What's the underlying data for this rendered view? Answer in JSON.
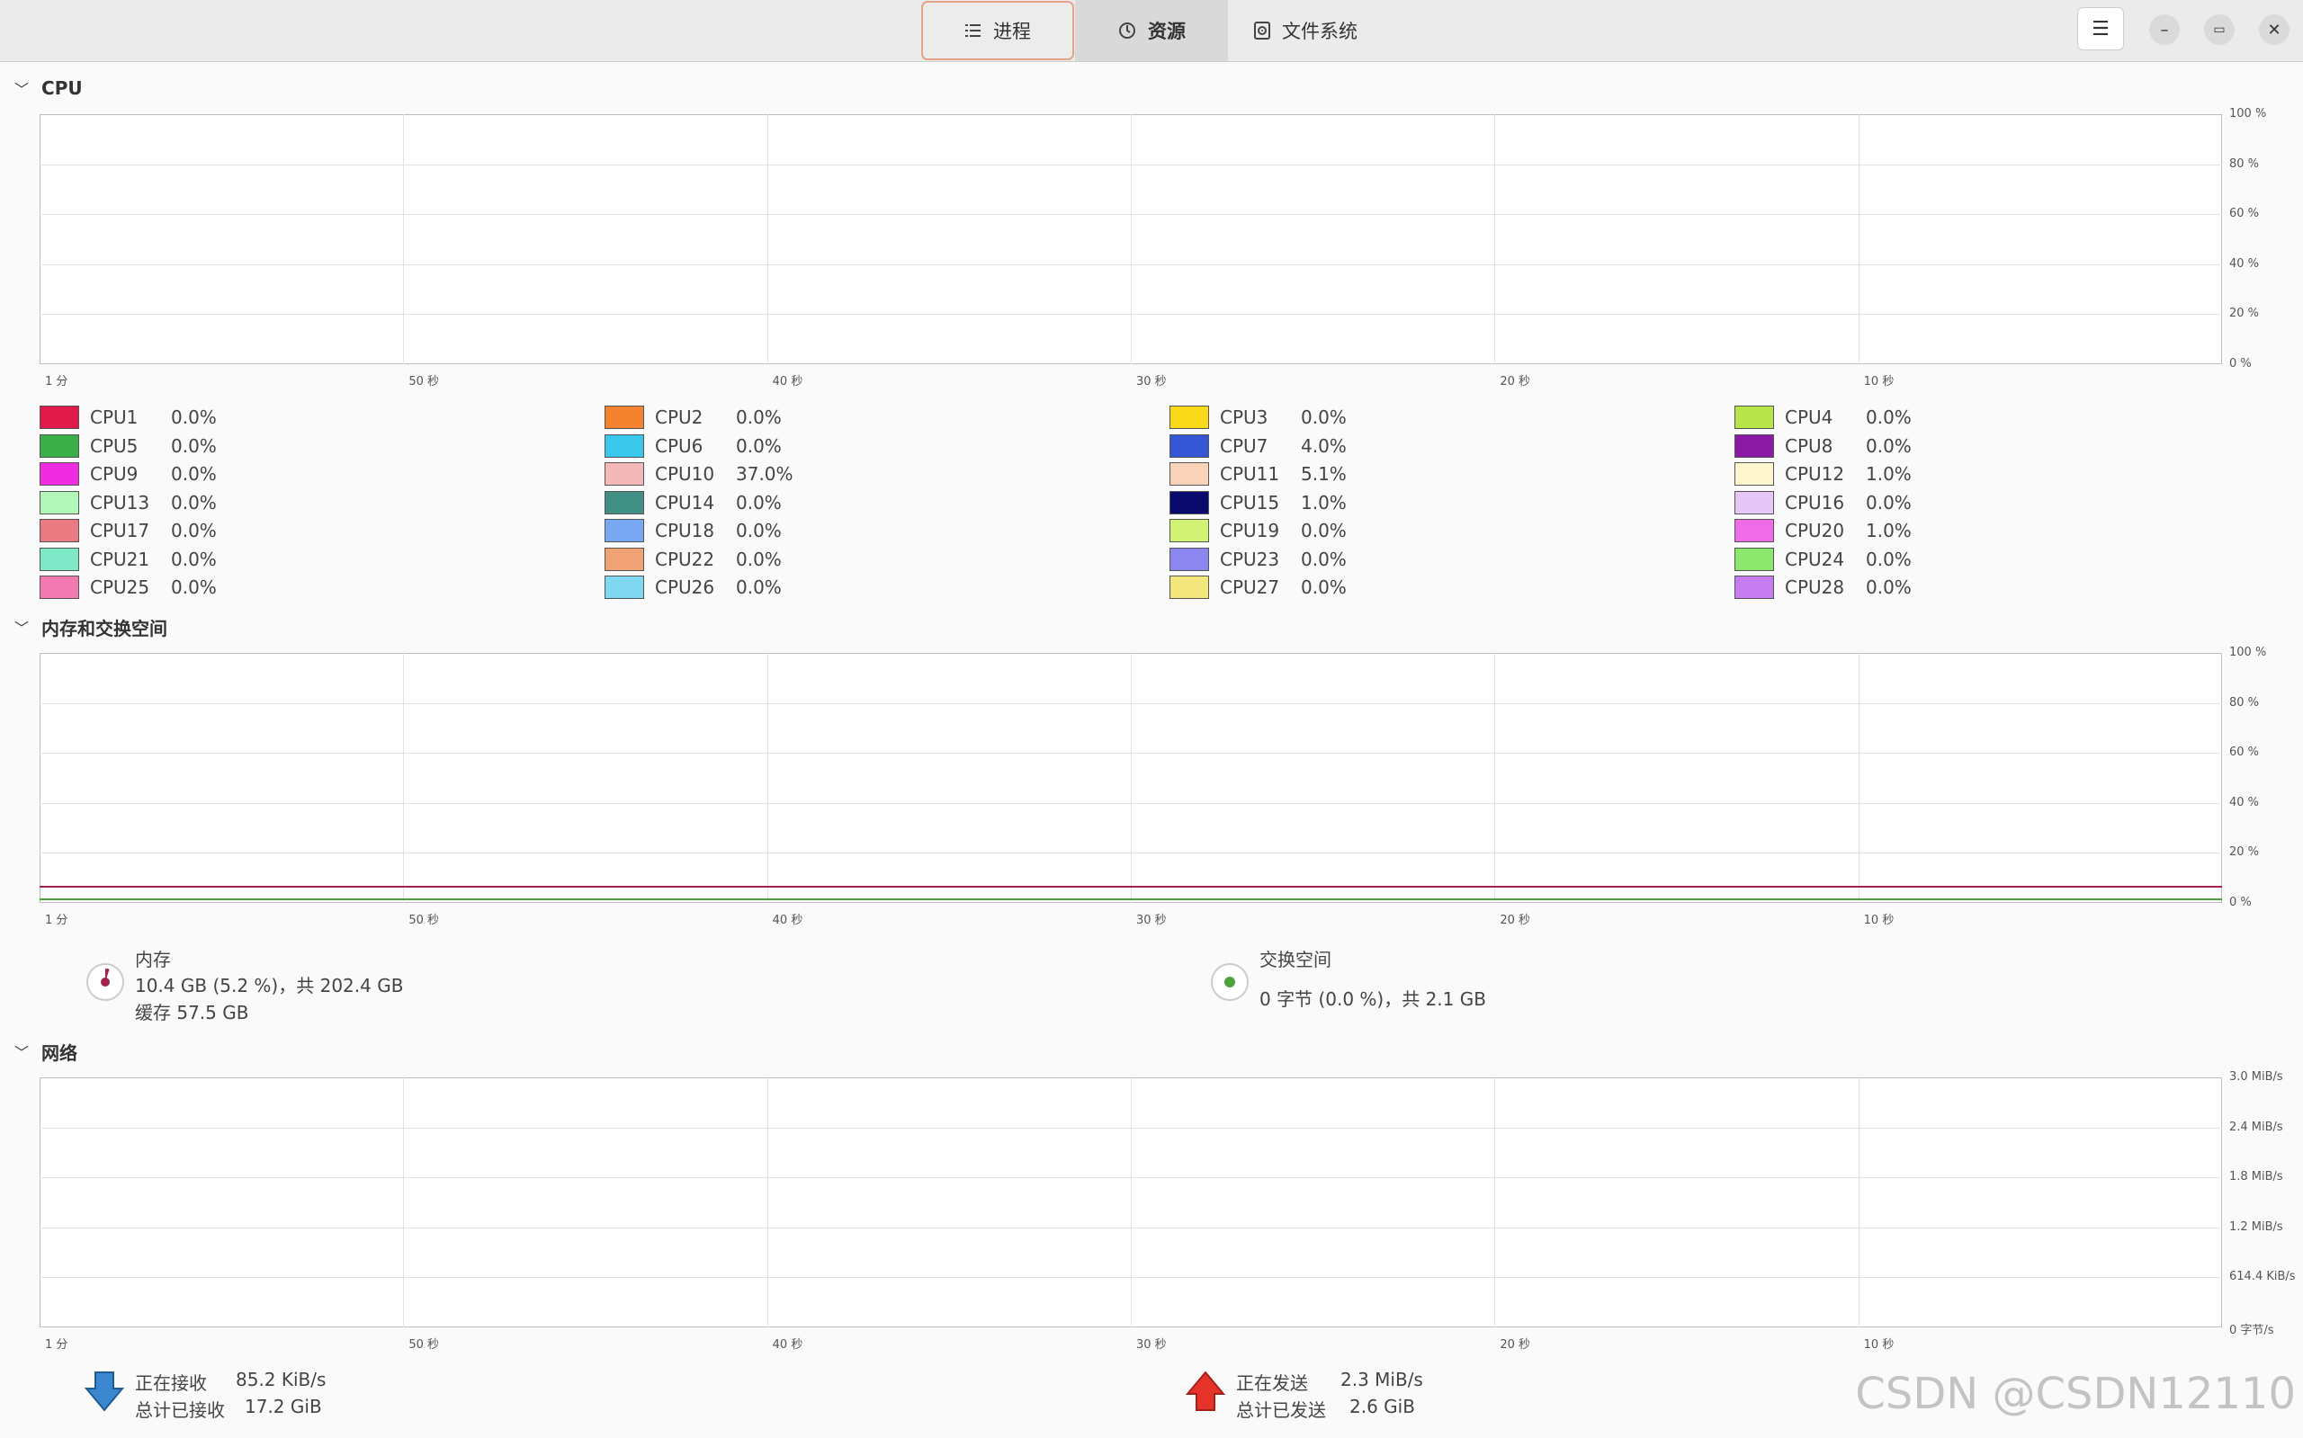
{
  "tabs": [
    {
      "label": "进程",
      "icon": "list-icon"
    },
    {
      "label": "资源",
      "icon": "gauge-icon"
    },
    {
      "label": "文件系统",
      "icon": "disk-icon"
    }
  ],
  "window_buttons": {
    "menu": "☰",
    "minimize": "–",
    "maximize": "▭",
    "close": "✕"
  },
  "sections": {
    "cpu": "CPU",
    "memory": "内存和交换空间",
    "network": "网络"
  },
  "x_ticks": [
    "1 分",
    "50 秒",
    "40 秒",
    "30 秒",
    "20 秒",
    "10 秒"
  ],
  "pct_ticks": [
    "100 %",
    "80 %",
    "60 %",
    "40 %",
    "20 %",
    "0 %"
  ],
  "net_ticks": [
    "3.0 MiB/s",
    "2.4 MiB/s",
    "1.8 MiB/s",
    "1.2 MiB/s",
    "614.4 KiB/s",
    "0 字节/s"
  ],
  "cpus": [
    {
      "name": "CPU1",
      "value": "0.0%",
      "color": "#e01b4c"
    },
    {
      "name": "CPU2",
      "value": "0.0%",
      "color": "#f5822e"
    },
    {
      "name": "CPU3",
      "value": "0.0%",
      "color": "#f8d91a"
    },
    {
      "name": "CPU4",
      "value": "0.0%",
      "color": "#b8e64a"
    },
    {
      "name": "CPU5",
      "value": "0.0%",
      "color": "#3aae49"
    },
    {
      "name": "CPU6",
      "value": "0.0%",
      "color": "#39c8ec"
    },
    {
      "name": "CPU7",
      "value": "4.0%",
      "color": "#3557d6"
    },
    {
      "name": "CPU8",
      "value": "0.0%",
      "color": "#8a1aa3"
    },
    {
      "name": "CPU9",
      "value": "0.0%",
      "color": "#ef2ce0"
    },
    {
      "name": "CPU10",
      "value": "37.0%",
      "color": "#f4b8b9"
    },
    {
      "name": "CPU11",
      "value": "5.1%",
      "color": "#f9d2ba"
    },
    {
      "name": "CPU12",
      "value": "1.0%",
      "color": "#fdf6cf"
    },
    {
      "name": "CPU13",
      "value": "0.0%",
      "color": "#b0f7b8"
    },
    {
      "name": "CPU14",
      "value": "0.0%",
      "color": "#3f8f84"
    },
    {
      "name": "CPU15",
      "value": "1.0%",
      "color": "#0a0a6e"
    },
    {
      "name": "CPU16",
      "value": "0.0%",
      "color": "#e6c6f7"
    },
    {
      "name": "CPU17",
      "value": "0.0%",
      "color": "#ec7a82"
    },
    {
      "name": "CPU18",
      "value": "0.0%",
      "color": "#79a8f2"
    },
    {
      "name": "CPU19",
      "value": "0.0%",
      "color": "#d2f275"
    },
    {
      "name": "CPU20",
      "value": "1.0%",
      "color": "#ef6ce6"
    },
    {
      "name": "CPU21",
      "value": "0.0%",
      "color": "#7ee8c7"
    },
    {
      "name": "CPU22",
      "value": "0.0%",
      "color": "#f0a274"
    },
    {
      "name": "CPU23",
      "value": "0.0%",
      "color": "#8c86f1"
    },
    {
      "name": "CPU24",
      "value": "0.0%",
      "color": "#8ce76d"
    },
    {
      "name": "CPU25",
      "value": "0.0%",
      "color": "#f27ab0"
    },
    {
      "name": "CPU26",
      "value": "0.0%",
      "color": "#7fd7f0"
    },
    {
      "name": "CPU27",
      "value": "0.0%",
      "color": "#f1e57c"
    },
    {
      "name": "CPU28",
      "value": "0.0%",
      "color": "#c57cf0"
    }
  ],
  "memory": {
    "label": "内存",
    "detail": "10.4 GB (5.2 %)，共 202.4 GB",
    "cache": "缓存 57.5 GB",
    "color": "#a3224b"
  },
  "swap": {
    "label": "交换空间",
    "detail": "0 字节 (0.0 %)，共 2.1 GB",
    "color": "#4ba33a"
  },
  "network": {
    "recv_label": "正在接收",
    "recv_value": "85.2 KiB/s",
    "recv_total_label": "总计已接收",
    "recv_total_value": "17.2 GiB",
    "send_label": "正在发送",
    "send_value": "2.3 MiB/s",
    "send_total_label": "总计已发送",
    "send_total_value": "2.6 GiB",
    "recv_color": "#3584e4",
    "send_color": "#e5332a"
  },
  "watermark": "CSDN @CSDN12110"
}
